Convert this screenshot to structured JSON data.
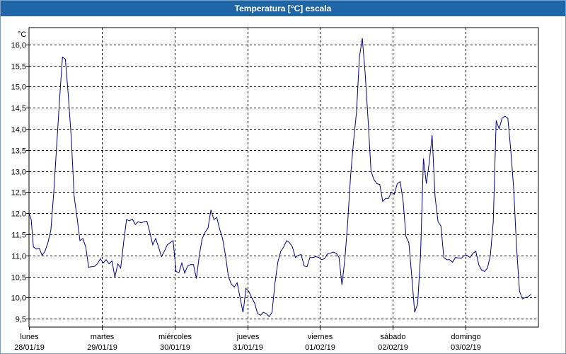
{
  "window": {
    "title": "Temperatura [°C] escala"
  },
  "chart_data": {
    "type": "line",
    "title": "Temperatura [°C] escala",
    "unit_label": "°C",
    "ylim": [
      9.3,
      16.4
    ],
    "y_ticks": [
      9.5,
      10.0,
      10.5,
      11.0,
      11.5,
      12.0,
      12.5,
      13.0,
      13.5,
      14.0,
      14.5,
      15.0,
      15.5,
      16.0
    ],
    "y_tick_labels": [
      "9,5",
      "10,0",
      "10,5",
      "11,0",
      "11,5",
      "12,0",
      "12,5",
      "13,0",
      "13,5",
      "14,0",
      "14,5",
      "15,0",
      "15,5",
      "16,0"
    ],
    "xlim": [
      0,
      7
    ],
    "day_labels": [
      {
        "day": "lunes",
        "date": "28/01/19"
      },
      {
        "day": "martes",
        "date": "29/01/19"
      },
      {
        "day": "miércoles",
        "date": "30/01/19"
      },
      {
        "day": "jueves",
        "date": "31/01/19"
      },
      {
        "day": "viernes",
        "date": "01/02/19"
      },
      {
        "day": "sábado",
        "date": "02/02/19"
      },
      {
        "day": "domingo",
        "date": "03/02/19"
      }
    ],
    "grid": true,
    "line_color": "#00008b",
    "series": [
      {
        "points": [
          [
            0.0,
            12.0
          ],
          [
            0.03,
            11.85
          ],
          [
            0.06,
            11.2
          ],
          [
            0.1,
            11.15
          ],
          [
            0.14,
            11.17
          ],
          [
            0.18,
            11.0
          ],
          [
            0.22,
            11.1
          ],
          [
            0.26,
            11.3
          ],
          [
            0.3,
            11.6
          ],
          [
            0.34,
            12.5
          ],
          [
            0.38,
            13.6
          ],
          [
            0.42,
            14.7
          ],
          [
            0.46,
            15.7
          ],
          [
            0.5,
            15.65
          ],
          [
            0.54,
            14.8
          ],
          [
            0.58,
            13.8
          ],
          [
            0.62,
            12.4
          ],
          [
            0.66,
            11.9
          ],
          [
            0.7,
            11.35
          ],
          [
            0.74,
            11.4
          ],
          [
            0.78,
            11.2
          ],
          [
            0.82,
            10.72
          ],
          [
            0.86,
            10.73
          ],
          [
            0.9,
            10.74
          ],
          [
            0.94,
            10.8
          ],
          [
            0.98,
            10.92
          ],
          [
            1.02,
            10.82
          ],
          [
            1.06,
            10.9
          ],
          [
            1.1,
            10.8
          ],
          [
            1.14,
            10.87
          ],
          [
            1.18,
            10.48
          ],
          [
            1.22,
            10.8
          ],
          [
            1.26,
            10.7
          ],
          [
            1.3,
            11.3
          ],
          [
            1.34,
            11.85
          ],
          [
            1.38,
            11.82
          ],
          [
            1.42,
            11.86
          ],
          [
            1.46,
            11.73
          ],
          [
            1.5,
            11.8
          ],
          [
            1.54,
            11.77
          ],
          [
            1.58,
            11.8
          ],
          [
            1.62,
            11.81
          ],
          [
            1.66,
            11.55
          ],
          [
            1.7,
            11.25
          ],
          [
            1.74,
            11.4
          ],
          [
            1.78,
            11.2
          ],
          [
            1.82,
            10.97
          ],
          [
            1.86,
            11.1
          ],
          [
            1.9,
            11.25
          ],
          [
            1.94,
            11.3
          ],
          [
            1.98,
            11.35
          ],
          [
            2.02,
            10.62
          ],
          [
            2.06,
            10.59
          ],
          [
            2.1,
            10.82
          ],
          [
            2.14,
            10.58
          ],
          [
            2.18,
            10.75
          ],
          [
            2.22,
            10.78
          ],
          [
            2.26,
            10.78
          ],
          [
            2.3,
            10.45
          ],
          [
            2.34,
            11.0
          ],
          [
            2.38,
            11.4
          ],
          [
            2.42,
            11.55
          ],
          [
            2.46,
            11.65
          ],
          [
            2.5,
            12.08
          ],
          [
            2.54,
            11.85
          ],
          [
            2.58,
            11.9
          ],
          [
            2.62,
            11.62
          ],
          [
            2.66,
            11.4
          ],
          [
            2.7,
            11.0
          ],
          [
            2.74,
            10.5
          ],
          [
            2.78,
            10.32
          ],
          [
            2.82,
            10.25
          ],
          [
            2.86,
            10.35
          ],
          [
            2.9,
            10.0
          ],
          [
            2.94,
            9.65
          ],
          [
            2.96,
            9.9
          ],
          [
            2.98,
            10.22
          ],
          [
            3.02,
            10.15
          ],
          [
            3.06,
            10.0
          ],
          [
            3.1,
            9.87
          ],
          [
            3.14,
            9.62
          ],
          [
            3.18,
            9.58
          ],
          [
            3.22,
            9.65
          ],
          [
            3.26,
            9.62
          ],
          [
            3.3,
            9.55
          ],
          [
            3.34,
            9.65
          ],
          [
            3.38,
            10.35
          ],
          [
            3.42,
            10.85
          ],
          [
            3.46,
            11.1
          ],
          [
            3.5,
            11.2
          ],
          [
            3.54,
            11.35
          ],
          [
            3.58,
            11.3
          ],
          [
            3.62,
            11.2
          ],
          [
            3.66,
            10.95
          ],
          [
            3.7,
            11.0
          ],
          [
            3.74,
            11.02
          ],
          [
            3.78,
            10.75
          ],
          [
            3.82,
            10.73
          ],
          [
            3.86,
            10.95
          ],
          [
            3.9,
            10.95
          ],
          [
            3.94,
            10.97
          ],
          [
            3.98,
            10.95
          ],
          [
            4.02,
            10.9
          ],
          [
            4.06,
            10.92
          ],
          [
            4.1,
            11.03
          ],
          [
            4.14,
            11.05
          ],
          [
            4.18,
            11.08
          ],
          [
            4.22,
            11.05
          ],
          [
            4.26,
            10.95
          ],
          [
            4.3,
            10.3
          ],
          [
            4.34,
            10.9
          ],
          [
            4.38,
            11.8
          ],
          [
            4.42,
            12.9
          ],
          [
            4.46,
            13.7
          ],
          [
            4.5,
            14.4
          ],
          [
            4.54,
            15.7
          ],
          [
            4.58,
            16.15
          ],
          [
            4.62,
            15.3
          ],
          [
            4.66,
            14.2
          ],
          [
            4.7,
            13.0
          ],
          [
            4.74,
            12.8
          ],
          [
            4.78,
            12.7
          ],
          [
            4.82,
            12.68
          ],
          [
            4.86,
            12.28
          ],
          [
            4.9,
            12.35
          ],
          [
            4.94,
            12.35
          ],
          [
            4.98,
            12.5
          ],
          [
            5.02,
            12.45
          ],
          [
            5.06,
            12.7
          ],
          [
            5.1,
            12.75
          ],
          [
            5.14,
            12.3
          ],
          [
            5.18,
            11.45
          ],
          [
            5.22,
            11.3
          ],
          [
            5.26,
            10.5
          ],
          [
            5.3,
            9.65
          ],
          [
            5.34,
            9.85
          ],
          [
            5.38,
            11.0
          ],
          [
            5.42,
            13.3
          ],
          [
            5.46,
            12.7
          ],
          [
            5.5,
            13.2
          ],
          [
            5.54,
            13.85
          ],
          [
            5.58,
            12.4
          ],
          [
            5.62,
            11.8
          ],
          [
            5.66,
            11.7
          ],
          [
            5.7,
            10.95
          ],
          [
            5.74,
            10.9
          ],
          [
            5.78,
            10.9
          ],
          [
            5.82,
            10.84
          ],
          [
            5.86,
            10.95
          ],
          [
            5.9,
            10.94
          ],
          [
            5.94,
            10.93
          ],
          [
            5.98,
            11.0
          ],
          [
            6.02,
            11.0
          ],
          [
            6.06,
            10.95
          ],
          [
            6.1,
            11.05
          ],
          [
            6.14,
            11.1
          ],
          [
            6.18,
            10.78
          ],
          [
            6.22,
            10.65
          ],
          [
            6.26,
            10.62
          ],
          [
            6.3,
            10.7
          ],
          [
            6.34,
            11.0
          ],
          [
            6.38,
            11.8
          ],
          [
            6.42,
            14.2
          ],
          [
            6.46,
            14.0
          ],
          [
            6.5,
            14.25
          ],
          [
            6.54,
            14.3
          ],
          [
            6.58,
            14.25
          ],
          [
            6.62,
            13.5
          ],
          [
            6.66,
            12.6
          ],
          [
            6.7,
            11.2
          ],
          [
            6.74,
            10.15
          ],
          [
            6.78,
            9.97
          ],
          [
            6.82,
            10.0
          ],
          [
            6.86,
            10.02
          ],
          [
            6.9,
            10.08
          ]
        ]
      }
    ]
  }
}
